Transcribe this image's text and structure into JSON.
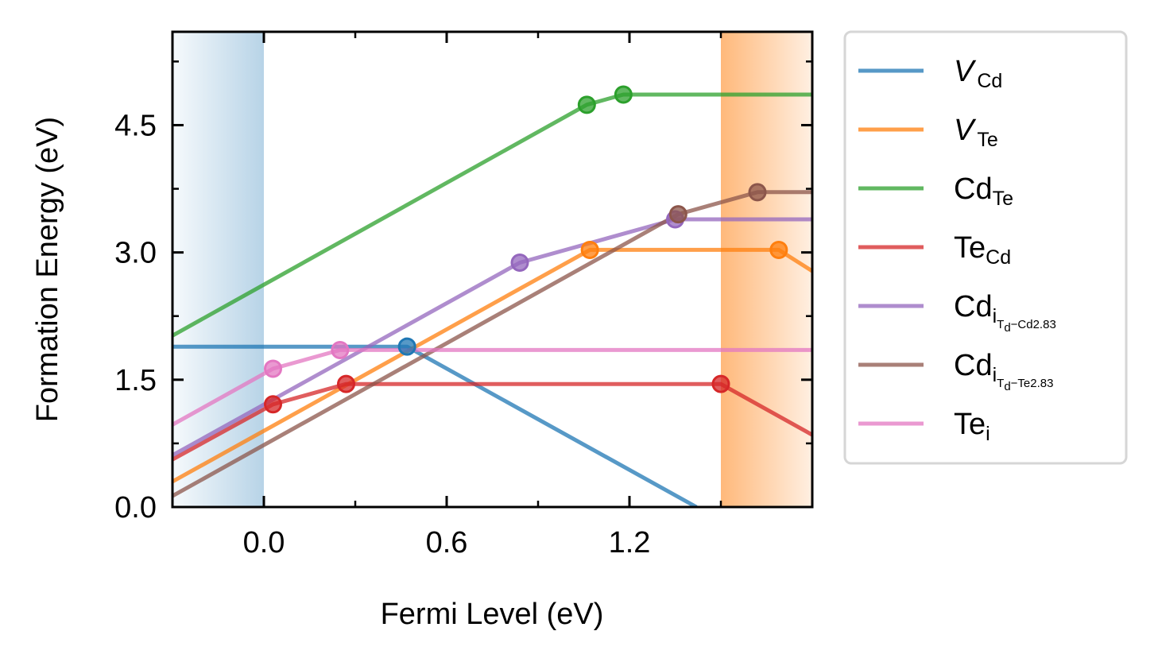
{
  "chart_data": {
    "type": "line",
    "title": "",
    "xlabel": "Fermi Level (eV)",
    "ylabel": "Formation Energy (eV)",
    "xlim": [
      -0.3,
      1.8
    ],
    "ylim": [
      0.0,
      5.6
    ],
    "xticks": [
      0.0,
      0.6,
      1.2
    ],
    "xtick_labels": [
      "0.0",
      "0.6",
      "1.2"
    ],
    "yticks": [
      0.0,
      1.5,
      3.0,
      4.5
    ],
    "ytick_labels": [
      "0.0",
      "1.5",
      "3.0",
      "4.5"
    ],
    "grid": false,
    "legend_position": "outside-right",
    "shaded_regions": [
      {
        "name": "valence-band",
        "x": [
          -0.3,
          0.0
        ],
        "color": "#1f77b4"
      },
      {
        "name": "conduction-band",
        "x": [
          1.5,
          1.8
        ],
        "color": "#ff7f0e"
      }
    ],
    "series": [
      {
        "label_base": "V",
        "label_sub": "Cd",
        "italic_base": true,
        "color": "#1f77b4",
        "x": [
          -0.3,
          0.47,
          1.42
        ],
        "y": [
          1.89,
          1.89,
          0.0
        ],
        "markers": [
          0.47
        ]
      },
      {
        "label_base": "V",
        "label_sub": "Te",
        "italic_base": true,
        "color": "#ff7f0e",
        "x": [
          -0.3,
          1.07,
          1.69,
          1.8
        ],
        "y": [
          0.3,
          3.03,
          3.03,
          2.78
        ],
        "markers": [
          1.07,
          1.69
        ]
      },
      {
        "label_base": "Cd",
        "label_sub": "Te",
        "italic_base": false,
        "color": "#2ca02c",
        "x": [
          -0.3,
          1.06,
          1.18,
          1.8
        ],
        "y": [
          2.02,
          4.74,
          4.86,
          4.86
        ],
        "markers": [
          1.06,
          1.18
        ]
      },
      {
        "label_base": "Te",
        "label_sub": "Cd",
        "italic_base": false,
        "color": "#d62728",
        "x": [
          -0.3,
          0.03,
          0.27,
          1.5,
          1.8
        ],
        "y": [
          0.56,
          1.21,
          1.45,
          1.45,
          0.85
        ],
        "markers": [
          0.03,
          0.27,
          1.5
        ]
      },
      {
        "label_base": "Cd",
        "label_sub": "i",
        "label_subsub": "T",
        "label_subsubsub": "d",
        "label_suffix": "−Cd2.83",
        "italic_base": false,
        "color": "#9467bd",
        "x": [
          -0.3,
          0.84,
          1.35,
          1.8
        ],
        "y": [
          0.61,
          2.88,
          3.39,
          3.39
        ],
        "markers": [
          0.84,
          1.35
        ]
      },
      {
        "label_base": "Cd",
        "label_sub": "i",
        "label_subsub": "T",
        "label_subsubsub": "d",
        "label_suffix": "−Te2.83",
        "italic_base": false,
        "color": "#8c564b",
        "x": [
          -0.3,
          1.36,
          1.62,
          1.8
        ],
        "y": [
          0.13,
          3.45,
          3.71,
          3.71
        ],
        "markers": [
          1.36,
          1.62
        ]
      },
      {
        "label_base": "Te",
        "label_sub": "i",
        "italic_base": false,
        "color": "#e377c2",
        "x": [
          -0.3,
          0.03,
          0.25,
          1.8
        ],
        "y": [
          0.97,
          1.63,
          1.85,
          1.85
        ],
        "markers": [
          0.03,
          0.25
        ]
      }
    ]
  }
}
